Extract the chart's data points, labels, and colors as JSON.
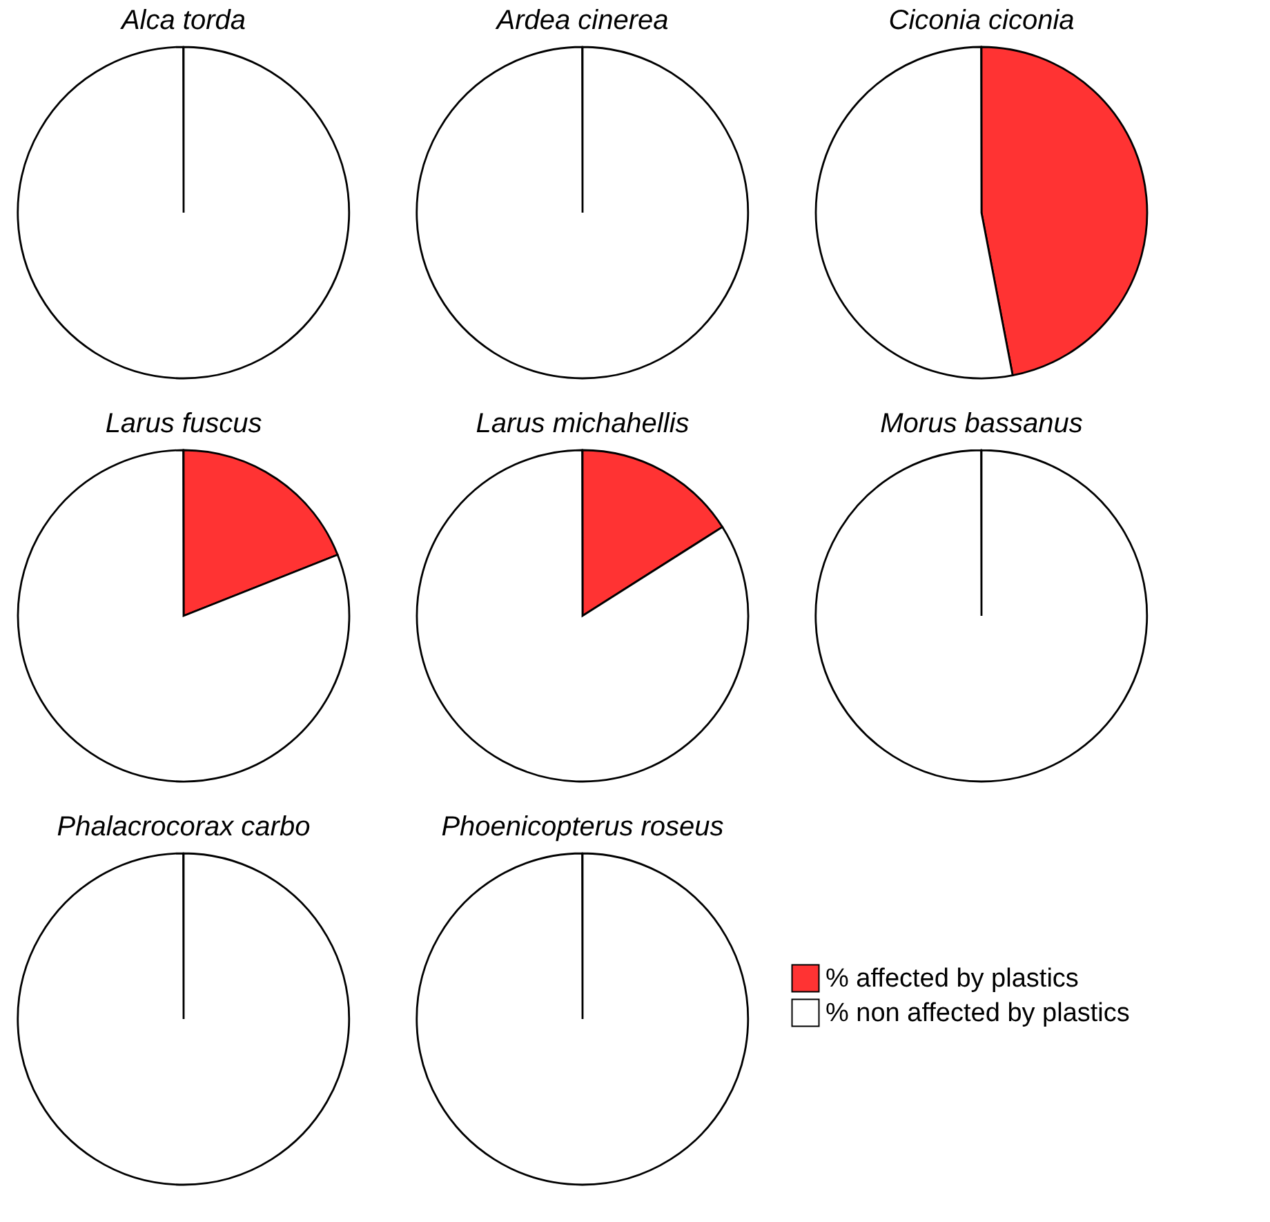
{
  "chart_data": [
    {
      "type": "pie",
      "title": "Alca torda",
      "categories": [
        "% affected by plastics",
        "% non affected by plastics"
      ],
      "values": [
        0,
        100
      ],
      "colors": [
        "#ff3333",
        "#ffffff"
      ],
      "legend": "bottom right"
    },
    {
      "type": "pie",
      "title": "Ardea cinerea",
      "values": [
        0,
        100
      ],
      "colors": [
        "#ff3333",
        "#ffffff"
      ]
    },
    {
      "type": "pie",
      "title": "Ciconia ciconia",
      "values": [
        47,
        53
      ],
      "colors": [
        "#ff3333",
        "#ffffff"
      ]
    },
    {
      "type": "pie",
      "title": "Larus fuscus",
      "values": [
        19,
        81
      ],
      "colors": [
        "#ff3333",
        "#ffffff"
      ]
    },
    {
      "type": "pie",
      "title": "Larus michahellis",
      "values": [
        16,
        84
      ],
      "colors": [
        "#ff3333",
        "#ffffff"
      ]
    },
    {
      "type": "pie",
      "title": "Morus bassanus",
      "values": [
        0,
        100
      ],
      "colors": [
        "#ff3333",
        "#ffffff"
      ]
    },
    {
      "type": "pie",
      "title": "Phalacrocorax carbo",
      "values": [
        0,
        100
      ],
      "colors": [
        "#ff3333",
        "#ffffff"
      ]
    },
    {
      "type": "pie",
      "title": "Phoenicopterus roseus",
      "values": [
        0,
        100
      ],
      "colors": [
        "#ff3333",
        "#ffffff"
      ]
    }
  ]
}
